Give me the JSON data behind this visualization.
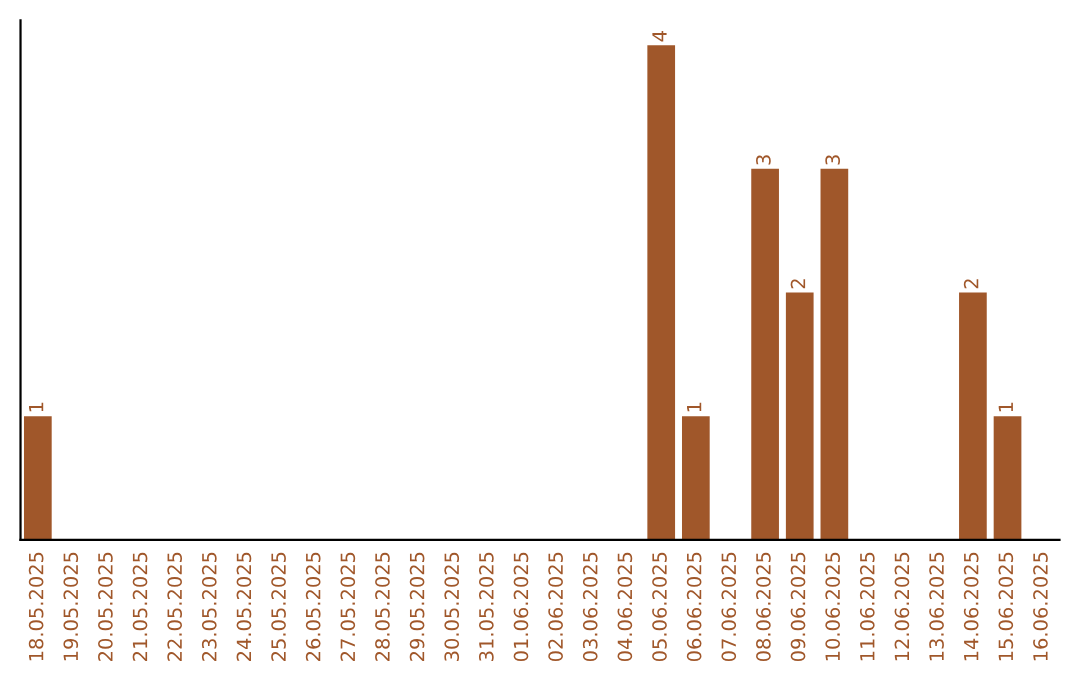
{
  "chart_data": {
    "type": "bar",
    "categories": [
      "18.05.2025",
      "19.05.2025",
      "20.05.2025",
      "21.05.2025",
      "22.05.2025",
      "23.05.2025",
      "24.05.2025",
      "25.05.2025",
      "26.05.2025",
      "27.05.2025",
      "28.05.2025",
      "29.05.2025",
      "30.05.2025",
      "31.05.2025",
      "01.06.2025",
      "02.06.2025",
      "03.06.2025",
      "04.06.2025",
      "05.06.2025",
      "06.06.2025",
      "07.06.2025",
      "08.06.2025",
      "09.06.2025",
      "10.06.2025",
      "11.06.2025",
      "12.06.2025",
      "13.06.2025",
      "14.06.2025",
      "15.06.2025",
      "16.06.2025"
    ],
    "values": [
      1,
      0,
      0,
      0,
      0,
      0,
      0,
      0,
      0,
      0,
      0,
      0,
      0,
      0,
      0,
      0,
      0,
      0,
      4,
      1,
      0,
      3,
      2,
      3,
      0,
      0,
      0,
      2,
      1,
      0
    ],
    "value_labels": [
      "1",
      null,
      null,
      null,
      null,
      null,
      null,
      null,
      null,
      null,
      null,
      null,
      null,
      null,
      null,
      null,
      null,
      null,
      "4",
      "1",
      null,
      "3",
      "2",
      "3",
      null,
      null,
      null,
      "2",
      "1",
      null
    ],
    "color": "#a0572a",
    "tick_labels": "x",
    "grid": false,
    "legend": false
  }
}
